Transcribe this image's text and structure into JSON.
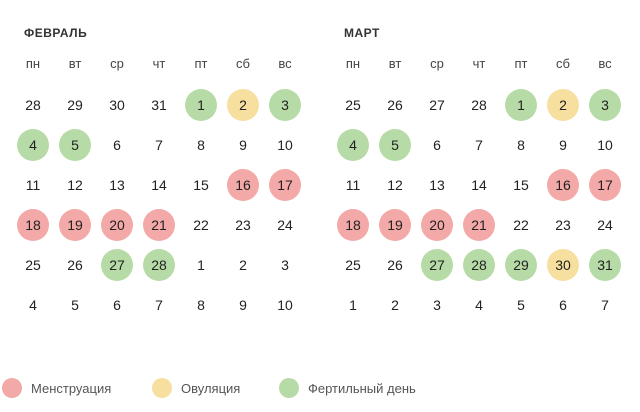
{
  "colors": {
    "menstruation": "#f3a9a8",
    "ovulation": "#f7df9f",
    "fertile": "#b7dba7"
  },
  "weekdays": [
    "пн",
    "вт",
    "ср",
    "чт",
    "пт",
    "сб",
    "вс"
  ],
  "calendars": [
    {
      "title": "ФЕВРАЛЬ",
      "days": [
        {
          "d": "28",
          "t": ""
        },
        {
          "d": "29",
          "t": ""
        },
        {
          "d": "30",
          "t": ""
        },
        {
          "d": "31",
          "t": ""
        },
        {
          "d": "1",
          "t": "f"
        },
        {
          "d": "2",
          "t": "o"
        },
        {
          "d": "3",
          "t": "f"
        },
        {
          "d": "4",
          "t": "f"
        },
        {
          "d": "5",
          "t": "f"
        },
        {
          "d": "6",
          "t": ""
        },
        {
          "d": "7",
          "t": ""
        },
        {
          "d": "8",
          "t": ""
        },
        {
          "d": "9",
          "t": ""
        },
        {
          "d": "10",
          "t": ""
        },
        {
          "d": "11",
          "t": ""
        },
        {
          "d": "12",
          "t": ""
        },
        {
          "d": "13",
          "t": ""
        },
        {
          "d": "14",
          "t": ""
        },
        {
          "d": "15",
          "t": ""
        },
        {
          "d": "16",
          "t": "m"
        },
        {
          "d": "17",
          "t": "m"
        },
        {
          "d": "18",
          "t": "m"
        },
        {
          "d": "19",
          "t": "m"
        },
        {
          "d": "20",
          "t": "m"
        },
        {
          "d": "21",
          "t": "m"
        },
        {
          "d": "22",
          "t": ""
        },
        {
          "d": "23",
          "t": ""
        },
        {
          "d": "24",
          "t": ""
        },
        {
          "d": "25",
          "t": ""
        },
        {
          "d": "26",
          "t": ""
        },
        {
          "d": "27",
          "t": "f"
        },
        {
          "d": "28",
          "t": "f"
        },
        {
          "d": "1",
          "t": ""
        },
        {
          "d": "2",
          "t": ""
        },
        {
          "d": "3",
          "t": ""
        },
        {
          "d": "4",
          "t": ""
        },
        {
          "d": "5",
          "t": ""
        },
        {
          "d": "6",
          "t": ""
        },
        {
          "d": "7",
          "t": ""
        },
        {
          "d": "8",
          "t": ""
        },
        {
          "d": "9",
          "t": ""
        },
        {
          "d": "10",
          "t": ""
        }
      ]
    },
    {
      "title": "МАРТ",
      "days": [
        {
          "d": "25",
          "t": ""
        },
        {
          "d": "26",
          "t": ""
        },
        {
          "d": "27",
          "t": ""
        },
        {
          "d": "28",
          "t": ""
        },
        {
          "d": "1",
          "t": "f"
        },
        {
          "d": "2",
          "t": "o"
        },
        {
          "d": "3",
          "t": "f"
        },
        {
          "d": "4",
          "t": "f"
        },
        {
          "d": "5",
          "t": "f"
        },
        {
          "d": "6",
          "t": ""
        },
        {
          "d": "7",
          "t": ""
        },
        {
          "d": "8",
          "t": ""
        },
        {
          "d": "9",
          "t": ""
        },
        {
          "d": "10",
          "t": ""
        },
        {
          "d": "11",
          "t": ""
        },
        {
          "d": "12",
          "t": ""
        },
        {
          "d": "13",
          "t": ""
        },
        {
          "d": "14",
          "t": ""
        },
        {
          "d": "15",
          "t": ""
        },
        {
          "d": "16",
          "t": "m"
        },
        {
          "d": "17",
          "t": "m"
        },
        {
          "d": "18",
          "t": "m"
        },
        {
          "d": "19",
          "t": "m"
        },
        {
          "d": "20",
          "t": "m"
        },
        {
          "d": "21",
          "t": "m"
        },
        {
          "d": "22",
          "t": ""
        },
        {
          "d": "23",
          "t": ""
        },
        {
          "d": "24",
          "t": ""
        },
        {
          "d": "25",
          "t": ""
        },
        {
          "d": "26",
          "t": ""
        },
        {
          "d": "27",
          "t": "f"
        },
        {
          "d": "28",
          "t": "f"
        },
        {
          "d": "29",
          "t": "f"
        },
        {
          "d": "30",
          "t": "o"
        },
        {
          "d": "31",
          "t": "f"
        },
        {
          "d": "1",
          "t": ""
        },
        {
          "d": "2",
          "t": ""
        },
        {
          "d": "3",
          "t": ""
        },
        {
          "d": "4",
          "t": ""
        },
        {
          "d": "5",
          "t": ""
        },
        {
          "d": "6",
          "t": ""
        },
        {
          "d": "7",
          "t": ""
        }
      ]
    }
  ],
  "legend": [
    {
      "label": "Менструация",
      "type": "m"
    },
    {
      "label": "Овуляция",
      "type": "o"
    },
    {
      "label": "Фертильный день",
      "type": "f"
    }
  ]
}
